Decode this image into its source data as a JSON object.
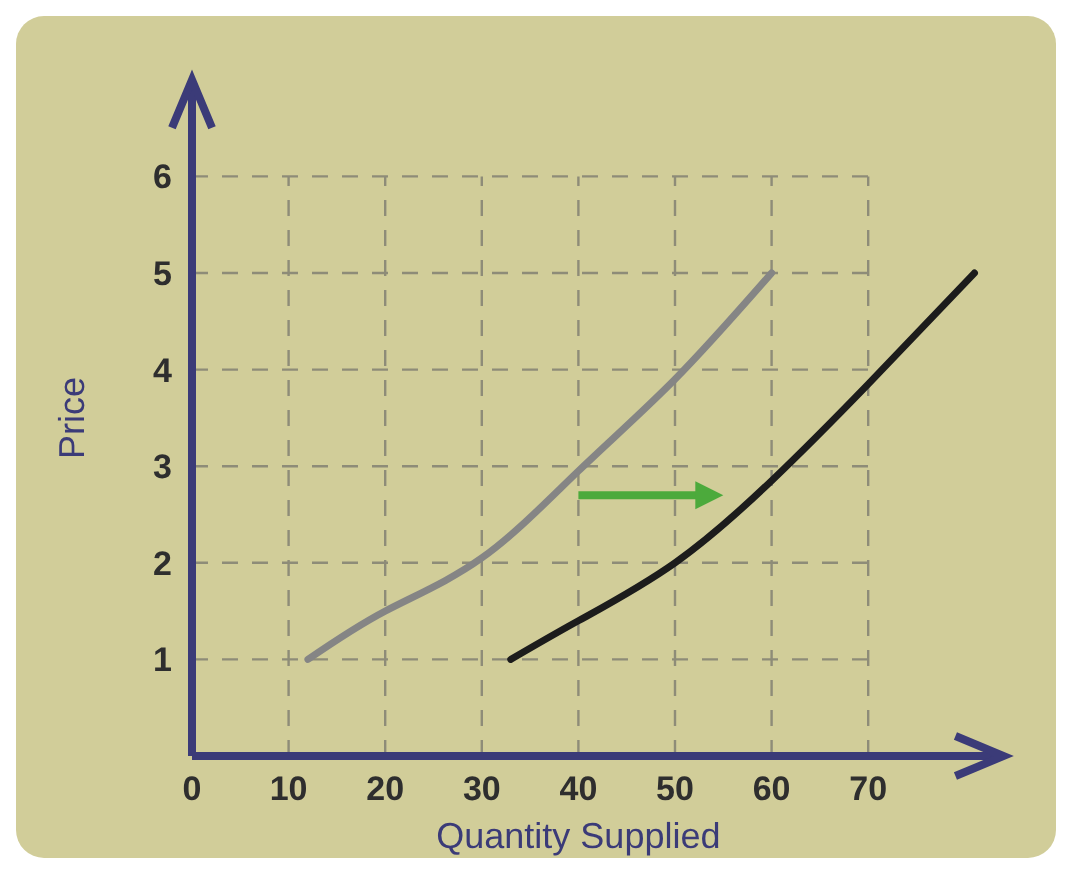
{
  "chart_data": {
    "type": "line",
    "xlabel": "Quantity Supplied",
    "ylabel": "Price",
    "xlim": [
      0,
      84
    ],
    "ylim": [
      0,
      7
    ],
    "xticks": [
      0,
      10,
      20,
      30,
      40,
      50,
      60,
      70
    ],
    "yticks": [
      1,
      2,
      3,
      4,
      5,
      6
    ],
    "grid": true,
    "series": [
      {
        "color": "#858585",
        "x": [
          12,
          20,
          30,
          40,
          50,
          60
        ],
        "values": [
          1,
          1.5,
          2.05,
          2.95,
          3.9,
          5
        ]
      },
      {
        "color": "#1c1c1c",
        "x": [
          33,
          40,
          50,
          60,
          70,
          81
        ],
        "values": [
          1,
          1.4,
          2,
          2.85,
          3.85,
          5
        ]
      }
    ]
  }
}
